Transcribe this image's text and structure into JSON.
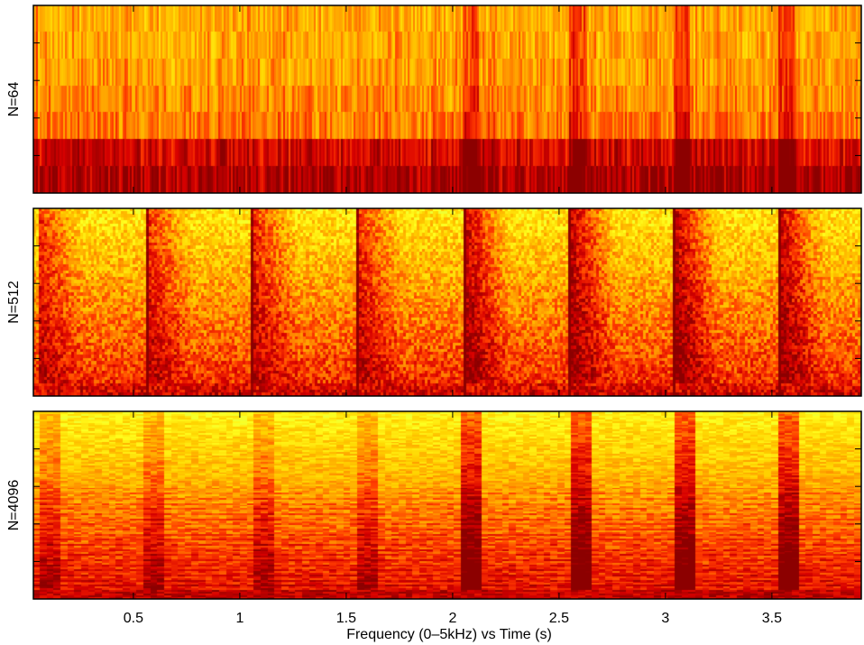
{
  "chart_data": {
    "type": "heatmap",
    "title": "",
    "xlabel": "Frequency (0–5kHz) vs Time (s)",
    "xlim": [
      0.03,
      3.92
    ],
    "xticks": [
      0.5,
      1,
      1.5,
      2,
      2.5,
      3,
      3.5
    ],
    "xtick_labels": [
      "0.5",
      "1",
      "1.5",
      "2",
      "2.5",
      "3",
      "3.5"
    ],
    "colormap": [
      "#8c0000",
      "#d70000",
      "#ff3c00",
      "#ff9600",
      "#ffd200",
      "#ffff1e",
      "#c8ff64",
      "#96f0a0"
    ],
    "onsets": [
      0.05,
      0.56,
      1.06,
      1.55,
      2.05,
      2.55,
      3.04,
      3.53
    ],
    "loud_onsets": [
      2.05,
      2.55,
      3.04,
      3.53
    ],
    "panels": [
      {
        "label": "N=64",
        "window_size": 64
      },
      {
        "label": "N=512",
        "window_size": 512
      },
      {
        "label": "N=4096",
        "window_size": 4096
      }
    ]
  }
}
